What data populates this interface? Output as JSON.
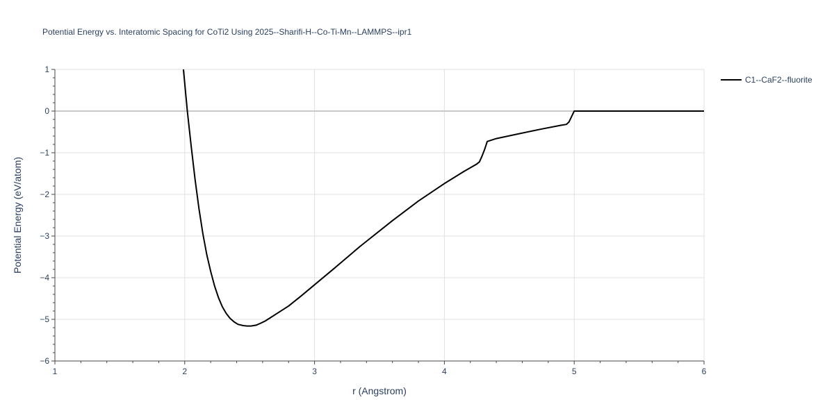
{
  "chart_data": {
    "type": "line",
    "title": "Potential Energy vs. Interatomic Spacing for CoTi2 Using 2025--Sharifi-H--Co-Ti-Mn--LAMMPS--ipr1",
    "xlabel": "r (Angstrom)",
    "ylabel": "Potential Energy (eV/atom)",
    "xlim": [
      1,
      6
    ],
    "ylim": [
      -6,
      1
    ],
    "x_ticks": [
      1,
      2,
      3,
      4,
      5,
      6
    ],
    "x_tick_labels": [
      "1",
      "2",
      "3",
      "4",
      "5",
      "6"
    ],
    "y_ticks": [
      1,
      0,
      -1,
      -2,
      -3,
      -4,
      -5,
      -6
    ],
    "y_tick_labels": [
      "1",
      "0",
      "−1",
      "−2",
      "−3",
      "−4",
      "−5",
      "−6"
    ],
    "grid": true,
    "zero_line": true,
    "legend_position": "top-right, outside plot",
    "series": [
      {
        "name": "C1--CaF2--fluorite",
        "color": "#000000",
        "x": [
          1.99,
          2.02,
          2.05,
          2.08,
          2.11,
          2.14,
          2.17,
          2.2,
          2.23,
          2.26,
          2.29,
          2.32,
          2.35,
          2.38,
          2.41,
          2.45,
          2.48,
          2.51,
          2.55,
          2.58,
          2.62,
          2.66,
          2.7,
          2.8,
          2.9,
          3.0,
          3.15,
          3.35,
          3.6,
          3.8,
          4.0,
          4.15,
          4.25,
          4.27,
          4.29,
          4.31,
          4.33,
          4.4,
          4.55,
          4.75,
          4.9,
          4.94,
          4.96,
          4.98,
          5.0,
          5.2,
          5.5,
          5.8,
          6.0
        ],
        "y": [
          1.0,
          0.0,
          -0.85,
          -1.65,
          -2.35,
          -2.95,
          -3.45,
          -3.85,
          -4.2,
          -4.48,
          -4.7,
          -4.86,
          -4.98,
          -5.06,
          -5.12,
          -5.15,
          -5.16,
          -5.16,
          -5.14,
          -5.1,
          -5.04,
          -4.96,
          -4.88,
          -4.68,
          -4.43,
          -4.17,
          -3.78,
          -3.25,
          -2.63,
          -2.16,
          -1.74,
          -1.45,
          -1.27,
          -1.22,
          -1.08,
          -0.92,
          -0.73,
          -0.66,
          -0.56,
          -0.43,
          -0.34,
          -0.32,
          -0.26,
          -0.13,
          0.0,
          0.0,
          0.0,
          0.0,
          0.0
        ]
      }
    ]
  }
}
